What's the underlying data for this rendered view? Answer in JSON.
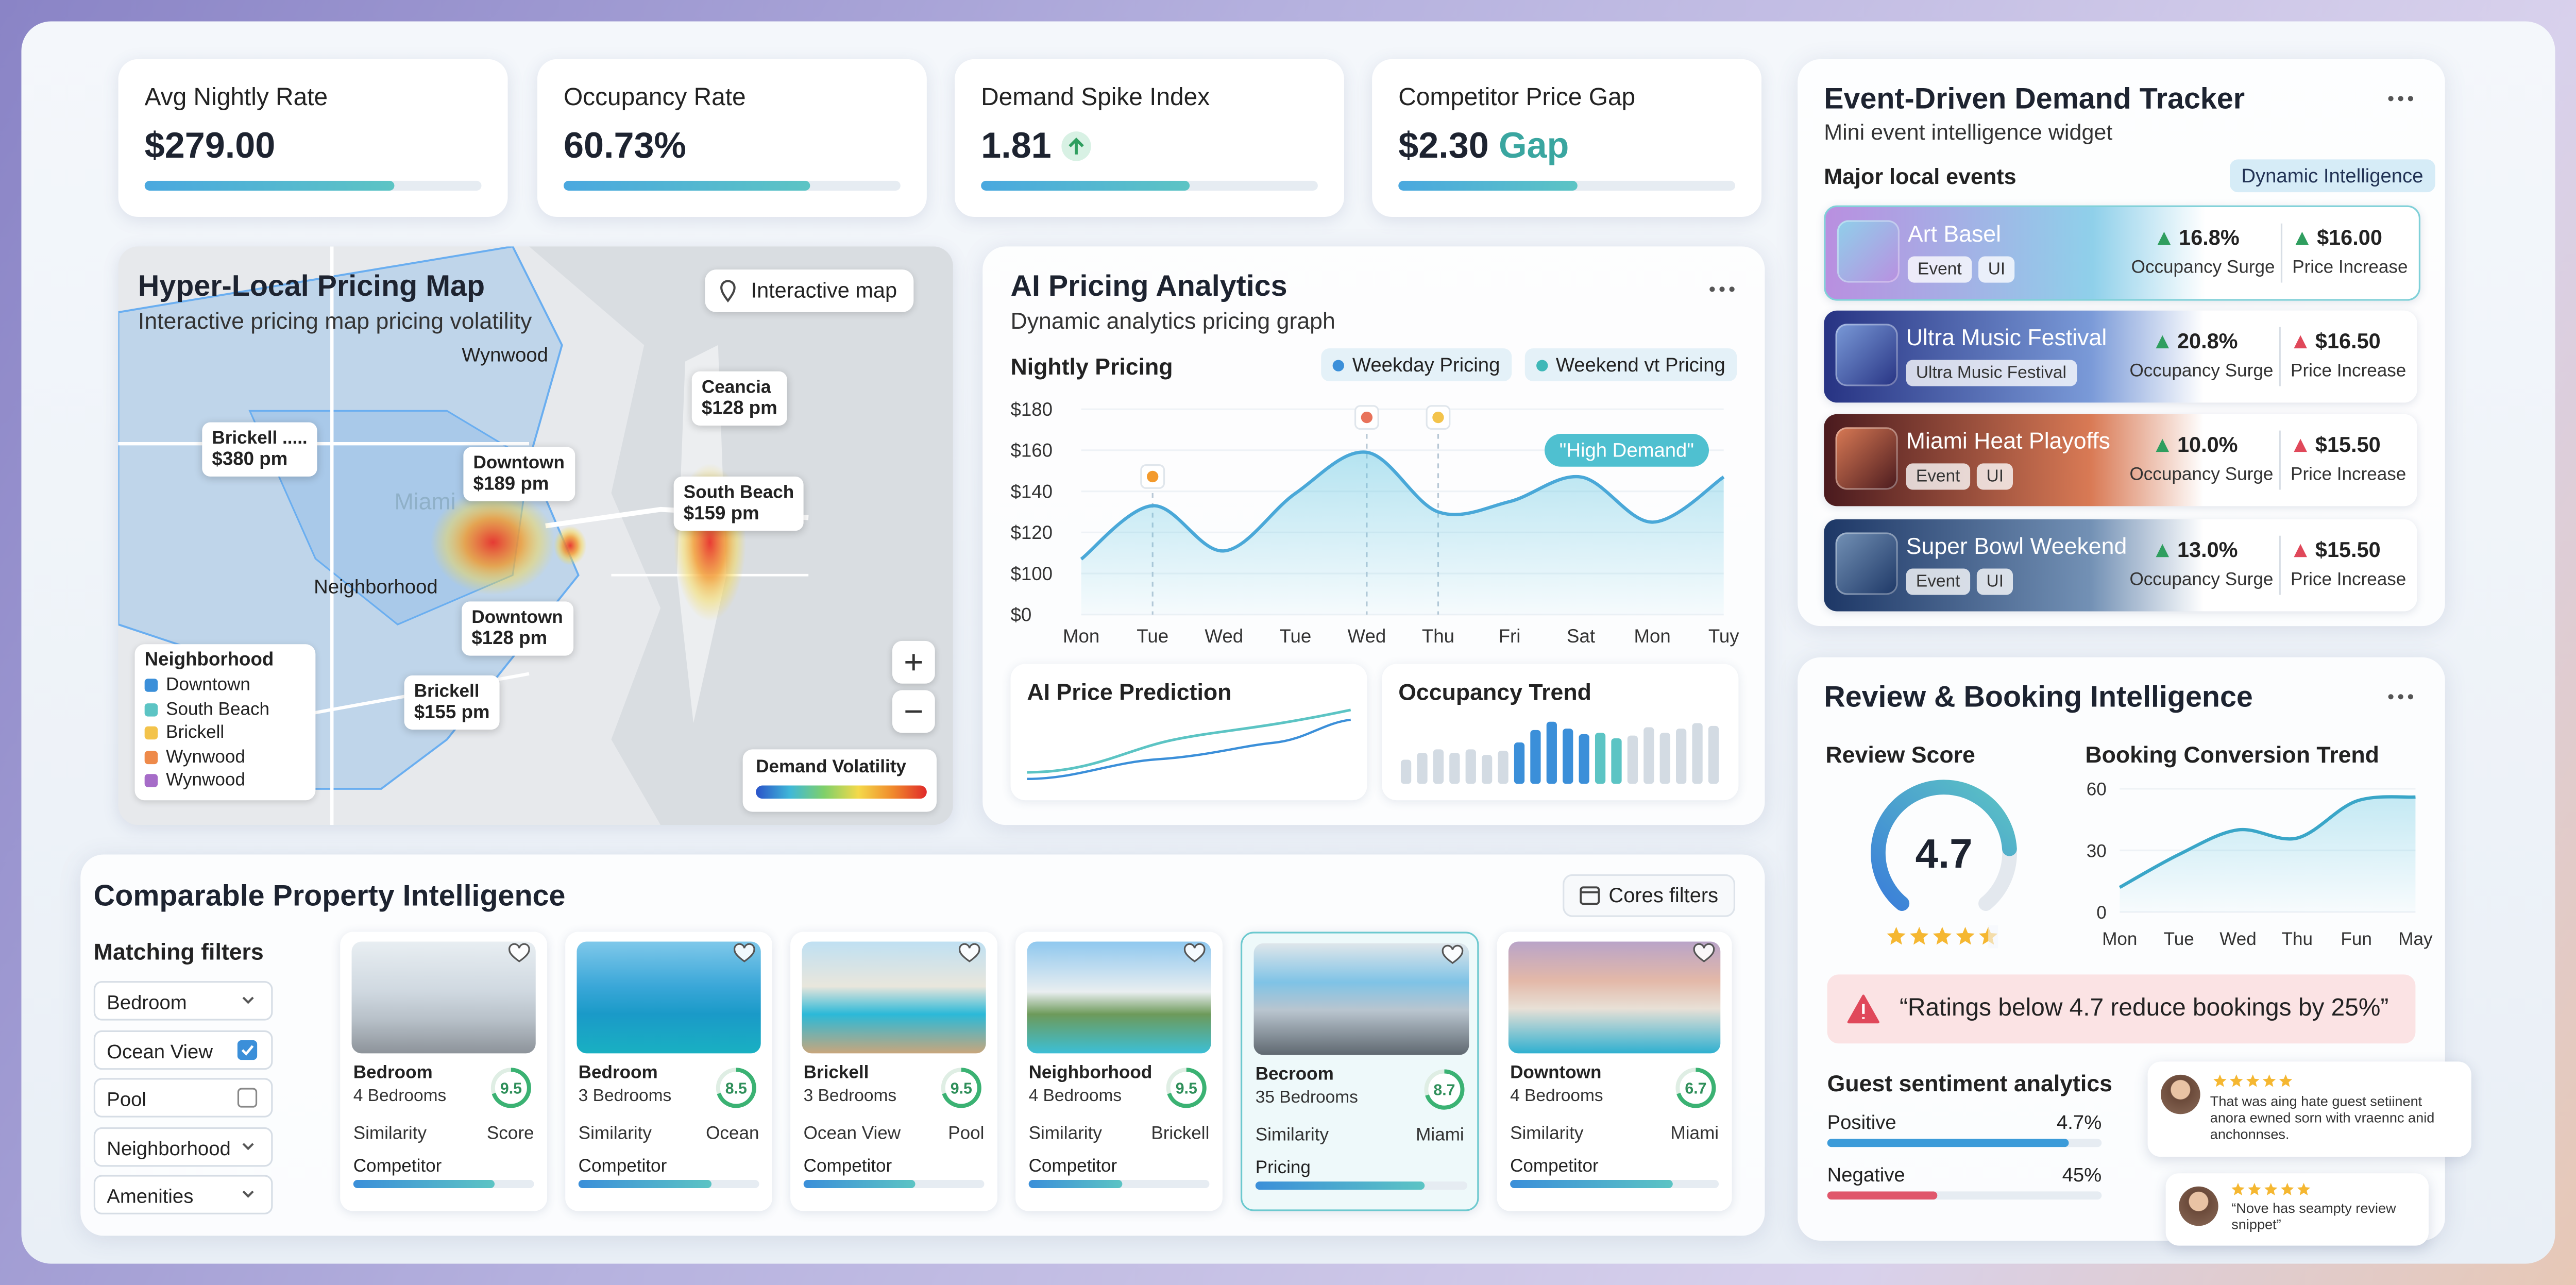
{
  "kpis": [
    {
      "label": "Avg Nightly Rate",
      "value": "$279.00",
      "progress": 74
    },
    {
      "label": "Occupancy Rate",
      "value": "60.73%",
      "progress": 73
    },
    {
      "label": "Demand Spike Index",
      "value": "1.81",
      "trend": "up",
      "progress": 62
    },
    {
      "label": "Competitor Price Gap",
      "value": "$2.30",
      "unit": "Gap",
      "progress": 53
    }
  ],
  "map": {
    "title": "Hyper-Local Pricing Map",
    "subtitle": "Interactive pricing map pricing volatility",
    "button": "Interactive map",
    "areas": [
      "Wynwood",
      "Miami",
      "Neighborhood"
    ],
    "pins": [
      {
        "name": "Brickell .....",
        "price": "$380 pm"
      },
      {
        "name": "Downtown",
        "price": "$189 pm"
      },
      {
        "name": "Ceancia",
        "price": "$128 pm"
      },
      {
        "name": "South Beach",
        "price": "$159 pm"
      },
      {
        "name": "Downtown",
        "price": "$128 pm"
      },
      {
        "name": "Brickell",
        "price": "$155 pm"
      }
    ],
    "legend": {
      "title": "Neighborhood",
      "items": [
        {
          "name": "Downtown",
          "color": "#3b8fd9"
        },
        {
          "name": "South Beach",
          "color": "#5cc4c4"
        },
        {
          "name": "Brickell",
          "color": "#f3c34b"
        },
        {
          "name": "Wynwood",
          "color": "#ee8a4a"
        },
        {
          "name": "Wynwood",
          "color": "#a66cc8"
        }
      ]
    },
    "volatility_label": "Demand Volatility"
  },
  "pricing": {
    "title": "AI Pricing Analytics",
    "subtitle": "Dynamic analytics pricing graph",
    "chart": {
      "type": "line",
      "title": "Nightly Pricing",
      "legend": [
        {
          "name": "Weekday Pricing",
          "color": "#3b8fd9"
        },
        {
          "name": "Weekend vt Pricing",
          "color": "#3fb8b8"
        }
      ],
      "categories": [
        "Mon",
        "Tue",
        "Wed",
        "Tue",
        "Wed",
        "Thu",
        "Fri",
        "Sat",
        "Mon",
        "Tuy"
      ],
      "values": [
        107,
        133,
        111,
        139,
        159,
        130,
        135,
        147,
        125,
        147
      ],
      "color": "#4aa8d8",
      "ylim": [
        0,
        180
      ],
      "yticks": [
        {
          "value": 0,
          "label": "$0"
        },
        {
          "value": 100,
          "label": "$100"
        },
        {
          "value": 120,
          "label": "$120"
        },
        {
          "value": 140,
          "label": "$140"
        },
        {
          "value": 160,
          "label": "$160"
        },
        {
          "value": 180,
          "label": "$180"
        }
      ],
      "annotation": "\"High Demand\""
    },
    "prediction": {
      "title": "AI Price Prediction"
    },
    "occupancy_trend": {
      "title": "Occupancy Trend",
      "values": [
        35,
        45,
        50,
        45,
        50,
        42,
        48,
        60,
        78,
        90,
        80,
        72,
        74,
        66,
        70,
        82,
        74,
        80,
        88,
        84
      ],
      "colors": [
        "#d3dbe3",
        "#d3dbe3",
        "#d3dbe3",
        "#d3dbe3",
        "#d3dbe3",
        "#d3dbe3",
        "#d3dbe3",
        "#3b8fd9",
        "#3b8fd9",
        "#3b8fd9",
        "#3b8fd9",
        "#3b8fd9",
        "#5cc4c4",
        "#5cc4c4",
        "#d3dbe3",
        "#d3dbe3",
        "#d3dbe3",
        "#d3dbe3",
        "#d3dbe3",
        "#d3dbe3"
      ]
    }
  },
  "events": {
    "title": "Event-Driven Demand Tracker",
    "subtitle": "Mini event intelligence widget",
    "section": "Major local events",
    "badge": "Dynamic Intelligence",
    "items": [
      {
        "name": "Art Basel",
        "tags": [
          "Event",
          "UI"
        ],
        "occupancy": "16.8%",
        "occupancy_label": "Occupancy Surge",
        "price": "$16.00",
        "price_label": "Price Increase",
        "price_trend_color": "#2f9e5f",
        "gradient": [
          "#b98fe0",
          "#8fd0ea"
        ]
      },
      {
        "name": "Ultra Music Festival",
        "tags": [
          "Ultra Music Festival"
        ],
        "occupancy": "20.8%",
        "occupancy_label": "Occupancy Surge",
        "price": "$16.50",
        "price_label": "Price Increase",
        "price_trend_color": "#e0485a",
        "gradient": [
          "#273383",
          "#7a9ad8"
        ]
      },
      {
        "name": "Miami Heat Playoffs",
        "tags": [
          "Event",
          "UI"
        ],
        "occupancy": "10.0%",
        "occupancy_label": "Occupancy Surge",
        "price": "$15.50",
        "price_label": "Price Increase",
        "price_trend_color": "#e0485a",
        "gradient": [
          "#4a1a1e",
          "#d97a55"
        ]
      },
      {
        "name": "Super Bowl Weekend",
        "tags": [
          "Event",
          "UI"
        ],
        "occupancy": "13.0%",
        "occupancy_label": "Occupancy Surge",
        "price": "$15.50",
        "price_label": "Price Increase",
        "price_trend_color": "#e0485a",
        "gradient": [
          "#1d3766",
          "#7391b5"
        ]
      }
    ]
  },
  "review": {
    "title": "Review & Booking Intelligence",
    "score_label": "Review Score",
    "score": "4.7",
    "booking": {
      "type": "line",
      "title": "Booking Conversion Trend",
      "categories": [
        "Mon",
        "Tue",
        "Wed",
        "Thu",
        "Fun",
        "May"
      ],
      "values": [
        12,
        28,
        40,
        36,
        54,
        56
      ],
      "color": "#3aa6c8",
      "ylim": [
        0,
        60
      ],
      "yticks": [
        0,
        30,
        60
      ]
    },
    "alert": "“Ratings below 4.7 reduce bookings by 25%”",
    "sentiment": {
      "title": "Guest sentiment analytics",
      "items": [
        {
          "name": "Positive",
          "value": "4.7%",
          "bar": 88,
          "color": "#3b9bd9"
        },
        {
          "name": "Negative",
          "value": "45%",
          "bar": 40,
          "color": "#e0566b"
        }
      ]
    },
    "reviews": [
      "That was aing hate guest setiinent anora ewned sorn with vraennc anid anchonnses.",
      "“Nove has seampty review snippet”"
    ]
  },
  "comparables": {
    "title": "Comparable Property Intelligence",
    "button": "Cores filters",
    "filters_title": "Matching filters",
    "filters": [
      {
        "name": "Bedroom",
        "control": "dropdown"
      },
      {
        "name": "Ocean View",
        "control": "checkbox",
        "checked": true
      },
      {
        "name": "Pool",
        "control": "checkbox",
        "checked": false
      },
      {
        "name": "Neighborhood",
        "control": "dropdown"
      },
      {
        "name": "Amenities",
        "control": "dropdown"
      }
    ],
    "cards": [
      {
        "name": "Bedroom",
        "beds": "4 Bedrooms",
        "score": "9.5",
        "left": "Similarity",
        "right": "Score",
        "bottom": "Competitor",
        "match": 78
      },
      {
        "name": "Bedroom",
        "beds": "3 Bedrooms",
        "score": "8.5",
        "left": "Similarity",
        "right": "Ocean",
        "bottom": "Competitor",
        "match": 74
      },
      {
        "name": "Brickell",
        "beds": "3 Bedrooms",
        "score": "9.5",
        "left": "Ocean View",
        "right": "Pool",
        "bottom": "Competitor",
        "match": 62
      },
      {
        "name": "Neighborhood",
        "beds": "4 Bedrooms",
        "score": "9.5",
        "left": "Similarity",
        "right": "Brickell",
        "bottom": "Competitor",
        "match": 52
      },
      {
        "name": "Becroom",
        "beds": "35 Bedrooms",
        "score": "8.7",
        "left": "Similarity",
        "right": "Miami",
        "bottom": "Pricing",
        "match": 80,
        "highlighted": true
      },
      {
        "name": "Downtown",
        "beds": "4 Bedrooms",
        "score": "6.7",
        "left": "Similarity",
        "right": "Miami",
        "bottom": "Competitor",
        "match": 78
      }
    ]
  }
}
